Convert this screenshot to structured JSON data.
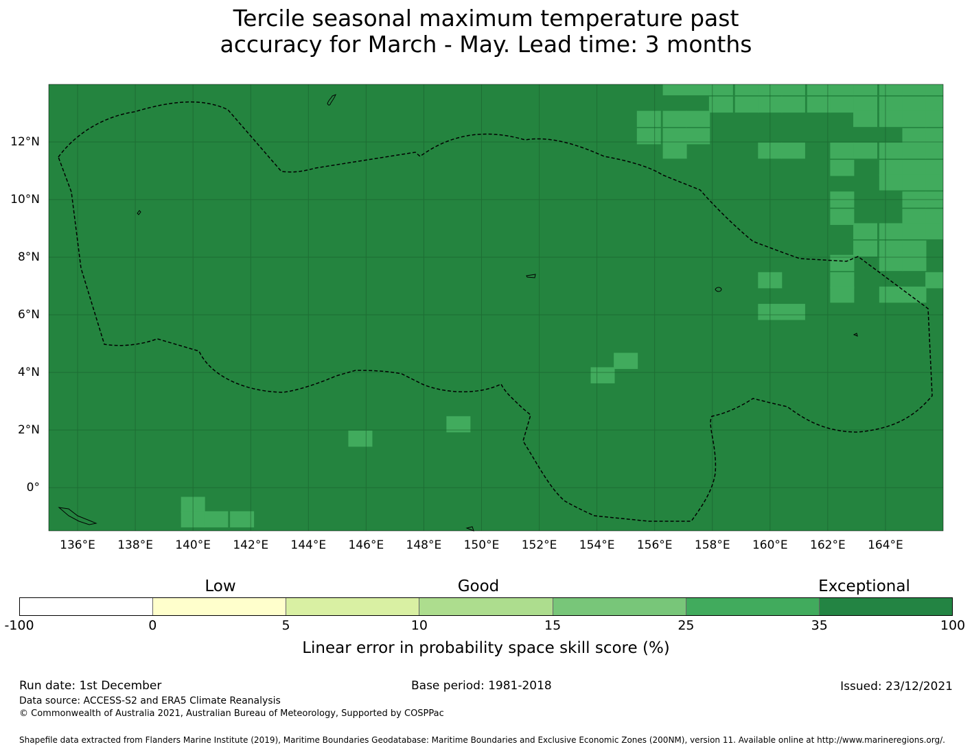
{
  "title": {
    "line1": "Tercile seasonal maximum temperature past",
    "line2": "accuracy for March - May. Lead time: 3 months"
  },
  "map": {
    "lon_range": [
      135,
      166
    ],
    "lat_range": [
      -1.5,
      14
    ],
    "background_color": "#24843f",
    "cell_color": "#41ab5d",
    "x_ticks": [
      "136°E",
      "138°E",
      "140°E",
      "142°E",
      "144°E",
      "146°E",
      "148°E",
      "150°E",
      "152°E",
      "154°E",
      "156°E",
      "158°E",
      "160°E",
      "162°E",
      "164°E"
    ],
    "y_ticks": [
      "0°",
      "2°N",
      "4°N",
      "6°N",
      "8°N",
      "10°N",
      "12°N"
    ],
    "skill_cells_25_35": [
      [
        156.7,
        13.9
      ],
      [
        157.5,
        13.9
      ],
      [
        158.3,
        13.9
      ],
      [
        159.2,
        13.9
      ],
      [
        160.0,
        13.9
      ],
      [
        160.8,
        13.9
      ],
      [
        161.7,
        13.9
      ],
      [
        162.5,
        13.9
      ],
      [
        163.3,
        13.9
      ],
      [
        164.2,
        13.9
      ],
      [
        165.0,
        13.9
      ],
      [
        165.8,
        13.9
      ],
      [
        158.3,
        13.3
      ],
      [
        159.2,
        13.3
      ],
      [
        160.0,
        13.3
      ],
      [
        160.8,
        13.3
      ],
      [
        161.7,
        13.3
      ],
      [
        162.5,
        13.3
      ],
      [
        163.3,
        13.3
      ],
      [
        164.2,
        13.3
      ],
      [
        165.0,
        13.3
      ],
      [
        165.8,
        13.3
      ],
      [
        155.8,
        12.8
      ],
      [
        156.7,
        12.8
      ],
      [
        157.5,
        12.8
      ],
      [
        163.3,
        12.8
      ],
      [
        164.2,
        12.8
      ],
      [
        165.0,
        12.8
      ],
      [
        165.8,
        12.8
      ],
      [
        155.8,
        12.2
      ],
      [
        156.7,
        12.2
      ],
      [
        157.5,
        12.2
      ],
      [
        165.0,
        12.2
      ],
      [
        165.8,
        12.2
      ],
      [
        156.7,
        11.7
      ],
      [
        160.0,
        11.7
      ],
      [
        160.8,
        11.7
      ],
      [
        162.5,
        11.7
      ],
      [
        163.3,
        11.7
      ],
      [
        164.2,
        11.7
      ],
      [
        165.0,
        11.7
      ],
      [
        165.8,
        11.7
      ],
      [
        162.5,
        11.1
      ],
      [
        164.2,
        11.1
      ],
      [
        165.0,
        11.1
      ],
      [
        165.8,
        11.1
      ],
      [
        164.2,
        10.6
      ],
      [
        165.0,
        10.6
      ],
      [
        165.8,
        10.6
      ],
      [
        162.5,
        10.0
      ],
      [
        165.0,
        10.0
      ],
      [
        165.8,
        10.0
      ],
      [
        162.5,
        9.4
      ],
      [
        165.0,
        9.4
      ],
      [
        165.8,
        9.4
      ],
      [
        163.3,
        8.9
      ],
      [
        164.2,
        8.9
      ],
      [
        165.0,
        8.9
      ],
      [
        165.8,
        8.9
      ],
      [
        163.3,
        8.3
      ],
      [
        164.2,
        8.3
      ],
      [
        165.0,
        8.3
      ],
      [
        162.5,
        7.8
      ],
      [
        164.2,
        7.8
      ],
      [
        165.0,
        7.8
      ],
      [
        160.0,
        7.2
      ],
      [
        162.5,
        7.2
      ],
      [
        165.8,
        7.2
      ],
      [
        162.5,
        6.7
      ],
      [
        164.2,
        6.7
      ],
      [
        165.0,
        6.7
      ],
      [
        160.0,
        6.1
      ],
      [
        160.8,
        6.1
      ],
      [
        155.0,
        4.4
      ],
      [
        154.2,
        3.9
      ],
      [
        149.2,
        2.2
      ],
      [
        145.8,
        1.7
      ],
      [
        140.0,
        -0.6
      ],
      [
        140.0,
        -1.1
      ],
      [
        140.8,
        -1.1
      ],
      [
        141.7,
        -1.1
      ]
    ]
  },
  "colorbar": {
    "category_labels": {
      "low": "Low",
      "good": "Good",
      "exceptional": "Exceptional"
    },
    "colors": [
      "#ffffff",
      "#ffffcc",
      "#d9f0a3",
      "#addd8e",
      "#78c679",
      "#41ab5d",
      "#238443"
    ],
    "tick_labels": [
      "-100",
      "0",
      "5",
      "10",
      "15",
      "25",
      "35",
      "100"
    ],
    "label": "Linear error in probability space skill score (%)"
  },
  "footer": {
    "run_date": "Run date: 1st December",
    "base_period": "Base period: 1981-2018",
    "issued": "Issued: 23/12/2021",
    "data_source": "Data source: ACCESS-S2 and ERA5 Climate Reanalysis",
    "copyright": "© Commonwealth of Australia 2021, Australian Bureau of Meteorology, Supported by COSPPac",
    "shapefile": "Shapefile data extracted from Flanders Marine Institute (2019), Maritime Boundaries Geodatabase: Maritime Boundaries and Exclusive Economic Zones (200NM), version 11. Available online at http://www.marineregions.org/."
  }
}
